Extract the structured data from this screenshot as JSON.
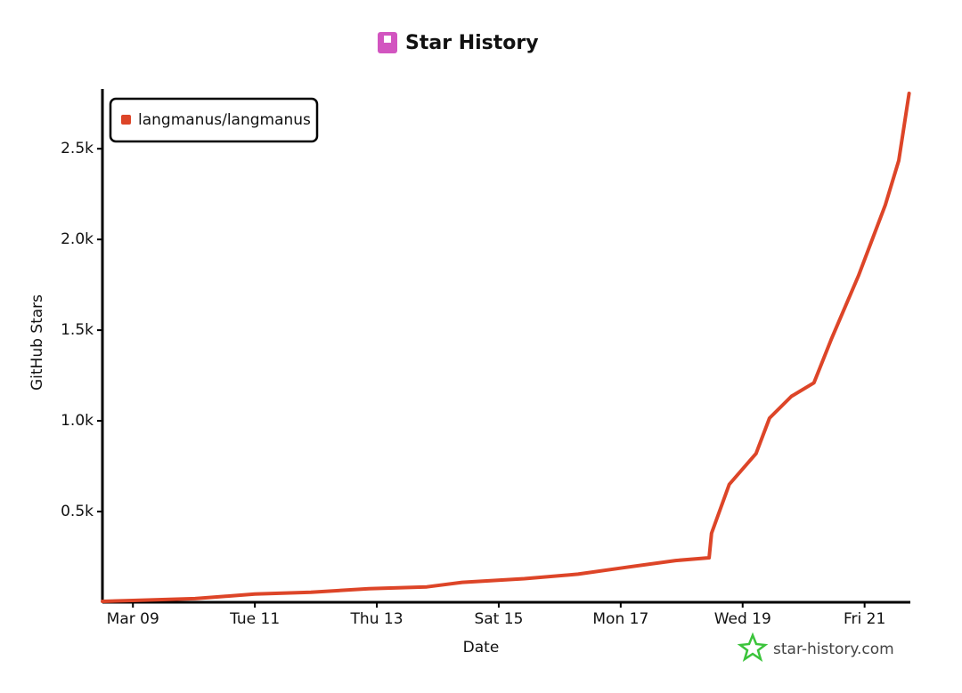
{
  "chart_data": {
    "type": "line",
    "title": "Star History",
    "x_label": "Date",
    "y_label": "GitHub Stars",
    "watermark": "star-history.com",
    "x": [
      8.5,
      9,
      10.02,
      11,
      11.92,
      12.87,
      13.82,
      14.4,
      15.42,
      16.3,
      17.03,
      17.9,
      18.45,
      18.49,
      18.78,
      19.22,
      19.44,
      19.8,
      20.17,
      20.46,
      20.9,
      21.34,
      21.56,
      21.73
    ],
    "series": [
      {
        "name": "langmanus/langmanus",
        "color": "#dd4528",
        "values": [
          5,
          10,
          20,
          45,
          55,
          75,
          85,
          110,
          130,
          155,
          190,
          230,
          245,
          380,
          650,
          820,
          1015,
          1135,
          1210,
          1455,
          1800,
          2190,
          2435,
          2805
        ]
      }
    ],
    "xlim": [
      8.5,
      21.75
    ],
    "xticks": [
      {
        "value": 9,
        "label": "Mar 09"
      },
      {
        "value": 11,
        "label": "Tue 11"
      },
      {
        "value": 13,
        "label": "Thu 13"
      },
      {
        "value": 15,
        "label": "Sat 15"
      },
      {
        "value": 17,
        "label": "Mon 17"
      },
      {
        "value": 19,
        "label": "Wed 19"
      },
      {
        "value": 21,
        "label": "Fri 21"
      }
    ],
    "ylim": [
      0,
      2805
    ],
    "yticks": [
      {
        "value": 500,
        "label": "0.5k"
      },
      {
        "value": 1000,
        "label": "1.0k"
      },
      {
        "value": 1500,
        "label": "1.5k"
      },
      {
        "value": 2000,
        "label": "2.0k"
      },
      {
        "value": 2500,
        "label": "2.5k"
      }
    ],
    "legend": "top-left"
  }
}
